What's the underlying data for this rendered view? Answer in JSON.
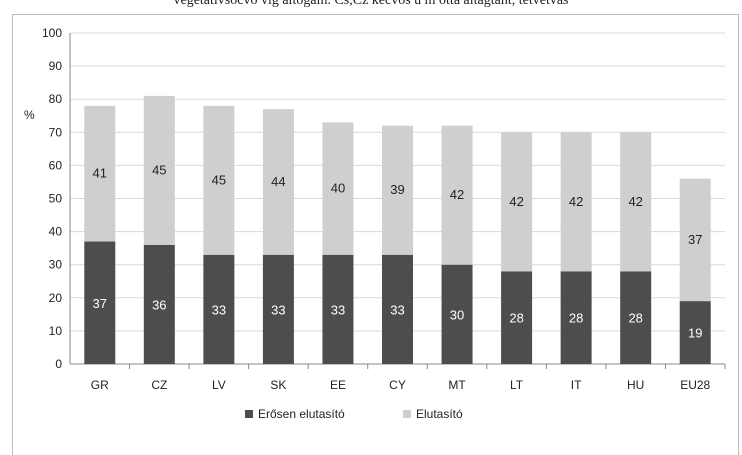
{
  "top_caption": "vegetatívsocvo vig altogain. Cs,Cz kecvos u m otta altagtant, tetvetvas",
  "chart_data": {
    "type": "bar",
    "stacked": true,
    "categories": [
      "GR",
      "CZ",
      "LV",
      "SK",
      "EE",
      "CY",
      "MT",
      "LT",
      "IT",
      "HU",
      "EU28"
    ],
    "series": [
      {
        "name": "Erősen elutasító",
        "values": [
          37,
          36,
          33,
          33,
          33,
          33,
          30,
          28,
          28,
          28,
          19
        ],
        "color": "#4d4d4d",
        "label_color": "#ffffff"
      },
      {
        "name": "Elutasító",
        "values": [
          41,
          45,
          45,
          44,
          40,
          39,
          42,
          42,
          42,
          42,
          37
        ],
        "color": "#cfcfcf",
        "label_color": "#222222"
      }
    ],
    "ylabel": "%",
    "ylim": [
      0,
      100
    ],
    "yticks": [
      "0",
      "10",
      "20",
      "30",
      "40",
      "50",
      "60",
      "70",
      "80",
      "90",
      "100"
    ],
    "grid": true,
    "legend_position": "bottom"
  }
}
